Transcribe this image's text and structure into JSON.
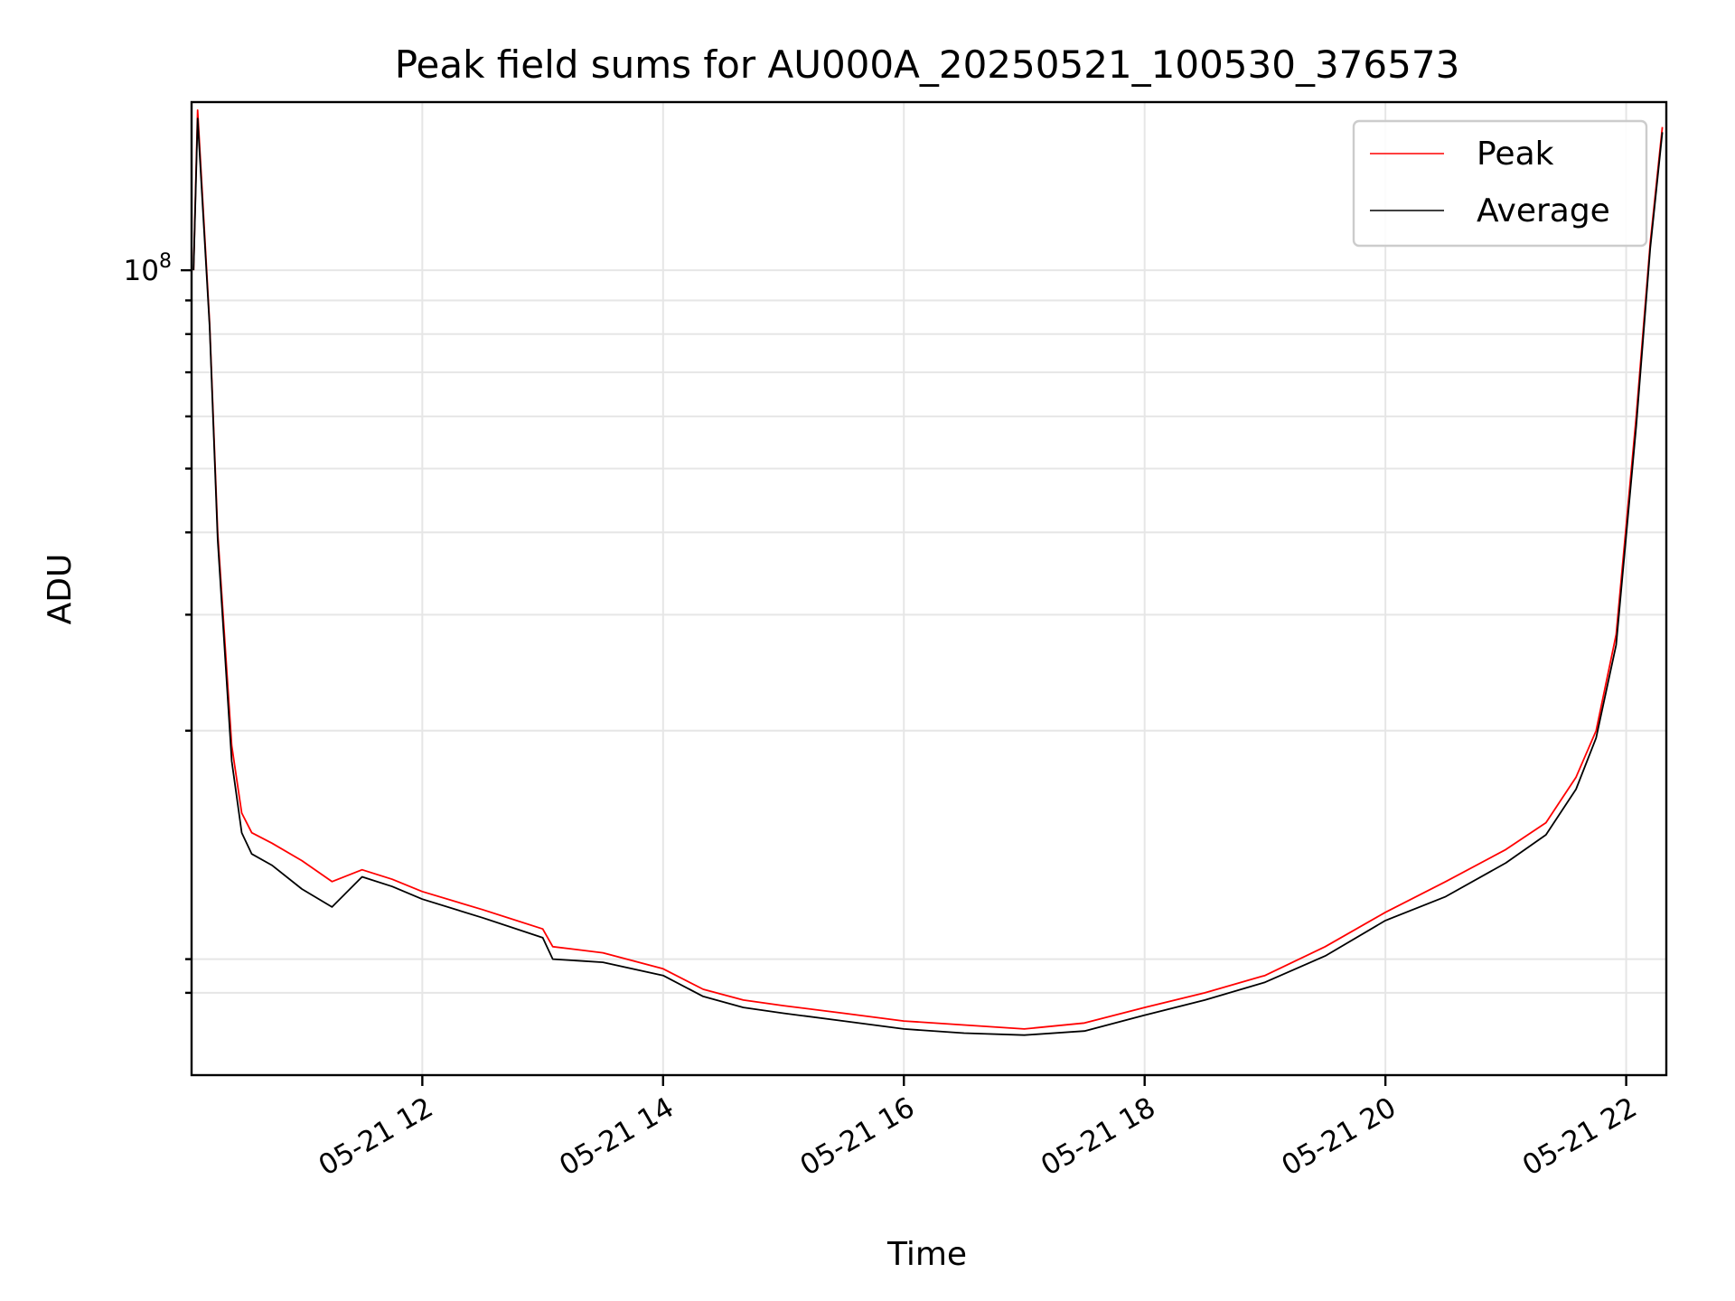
{
  "chart_data": {
    "type": "line",
    "title": "Peak field sums for AU000A_20250521_100530_376573",
    "xlabel": "Time",
    "ylabel": "ADU",
    "yscale": "log",
    "grid": true,
    "legend_position": "upper right",
    "xlim": [
      "2025-05-21 10:05",
      "2025-05-21 22:20"
    ],
    "ylim": [
      6000000.0,
      180000000.0
    ],
    "x_ticks": [
      {
        "value": "2025-05-21 12:00",
        "label": "05-21 12"
      },
      {
        "value": "2025-05-21 14:00",
        "label": "05-21 14"
      },
      {
        "value": "2025-05-21 16:00",
        "label": "05-21 16"
      },
      {
        "value": "2025-05-21 18:00",
        "label": "05-21 18"
      },
      {
        "value": "2025-05-21 20:00",
        "label": "05-21 20"
      },
      {
        "value": "2025-05-21 22:00",
        "label": "05-21 22"
      }
    ],
    "y_major_ticks": [
      {
        "value": 100000000,
        "label_base": "10",
        "label_exp": "8"
      }
    ],
    "y_minor_ticks": [
      8000000,
      9000000,
      20000000,
      30000000,
      40000000,
      50000000,
      60000000,
      70000000,
      80000000,
      90000000
    ],
    "series": [
      {
        "name": "Peak",
        "color": "#ff0000",
        "x": [
          "2025-05-21 10:06",
          "2025-05-21 10:08",
          "2025-05-21 10:14",
          "2025-05-21 10:18",
          "2025-05-21 10:25",
          "2025-05-21 10:30",
          "2025-05-21 10:35",
          "2025-05-21 10:45",
          "2025-05-21 11:00",
          "2025-05-21 11:15",
          "2025-05-21 11:30",
          "2025-05-21 11:45",
          "2025-05-21 12:00",
          "2025-05-21 12:30",
          "2025-05-21 13:00",
          "2025-05-21 13:05",
          "2025-05-21 13:30",
          "2025-05-21 14:00",
          "2025-05-21 14:20",
          "2025-05-21 14:40",
          "2025-05-21 15:00",
          "2025-05-21 15:30",
          "2025-05-21 16:00",
          "2025-05-21 16:30",
          "2025-05-21 17:00",
          "2025-05-21 17:30",
          "2025-05-21 18:00",
          "2025-05-21 18:30",
          "2025-05-21 19:00",
          "2025-05-21 19:30",
          "2025-05-21 20:00",
          "2025-05-21 20:30",
          "2025-05-21 21:00",
          "2025-05-21 21:20",
          "2025-05-21 21:35",
          "2025-05-21 21:45",
          "2025-05-21 21:55",
          "2025-05-21 22:05",
          "2025-05-21 22:12",
          "2025-05-21 22:18"
        ],
        "y": [
          100000000,
          175000000,
          83000000,
          40000000,
          19000000,
          15000000,
          14000000,
          13500000,
          12700000,
          11800000,
          12300000,
          11900000,
          11400000,
          10700000,
          10000000,
          9400000,
          9200000,
          8700000,
          8100000,
          7800000,
          7650000,
          7450000,
          7250000,
          7150000,
          7050000,
          7200000,
          7600000,
          8000000,
          8500000,
          9400000,
          10600000,
          11800000,
          13200000,
          14500000,
          17000000,
          20000000,
          28000000,
          60000000,
          110000000,
          165000000
        ]
      },
      {
        "name": "Average",
        "color": "#000000",
        "x": [
          "2025-05-21 10:06",
          "2025-05-21 10:08",
          "2025-05-21 10:14",
          "2025-05-21 10:18",
          "2025-05-21 10:25",
          "2025-05-21 10:30",
          "2025-05-21 10:35",
          "2025-05-21 10:45",
          "2025-05-21 11:00",
          "2025-05-21 11:15",
          "2025-05-21 11:30",
          "2025-05-21 11:45",
          "2025-05-21 12:00",
          "2025-05-21 12:30",
          "2025-05-21 13:00",
          "2025-05-21 13:05",
          "2025-05-21 13:30",
          "2025-05-21 14:00",
          "2025-05-21 14:20",
          "2025-05-21 14:40",
          "2025-05-21 15:00",
          "2025-05-21 15:30",
          "2025-05-21 16:00",
          "2025-05-21 16:30",
          "2025-05-21 17:00",
          "2025-05-21 17:30",
          "2025-05-21 18:00",
          "2025-05-21 18:30",
          "2025-05-21 19:00",
          "2025-05-21 19:30",
          "2025-05-21 20:00",
          "2025-05-21 20:30",
          "2025-05-21 21:00",
          "2025-05-21 21:20",
          "2025-05-21 21:35",
          "2025-05-21 21:45",
          "2025-05-21 21:55",
          "2025-05-21 22:05",
          "2025-05-21 22:12",
          "2025-05-21 22:18"
        ],
        "y": [
          100000000,
          170000000,
          82000000,
          39000000,
          18000000,
          14000000,
          13000000,
          12500000,
          11500000,
          10800000,
          12000000,
          11600000,
          11100000,
          10400000,
          9700000,
          9000000,
          8900000,
          8500000,
          7900000,
          7600000,
          7450000,
          7250000,
          7050000,
          6950000,
          6900000,
          7000000,
          7400000,
          7800000,
          8300000,
          9100000,
          10300000,
          11200000,
          12600000,
          13900000,
          16300000,
          19500000,
          27000000,
          58000000,
          108000000,
          162000000
        ]
      }
    ]
  }
}
